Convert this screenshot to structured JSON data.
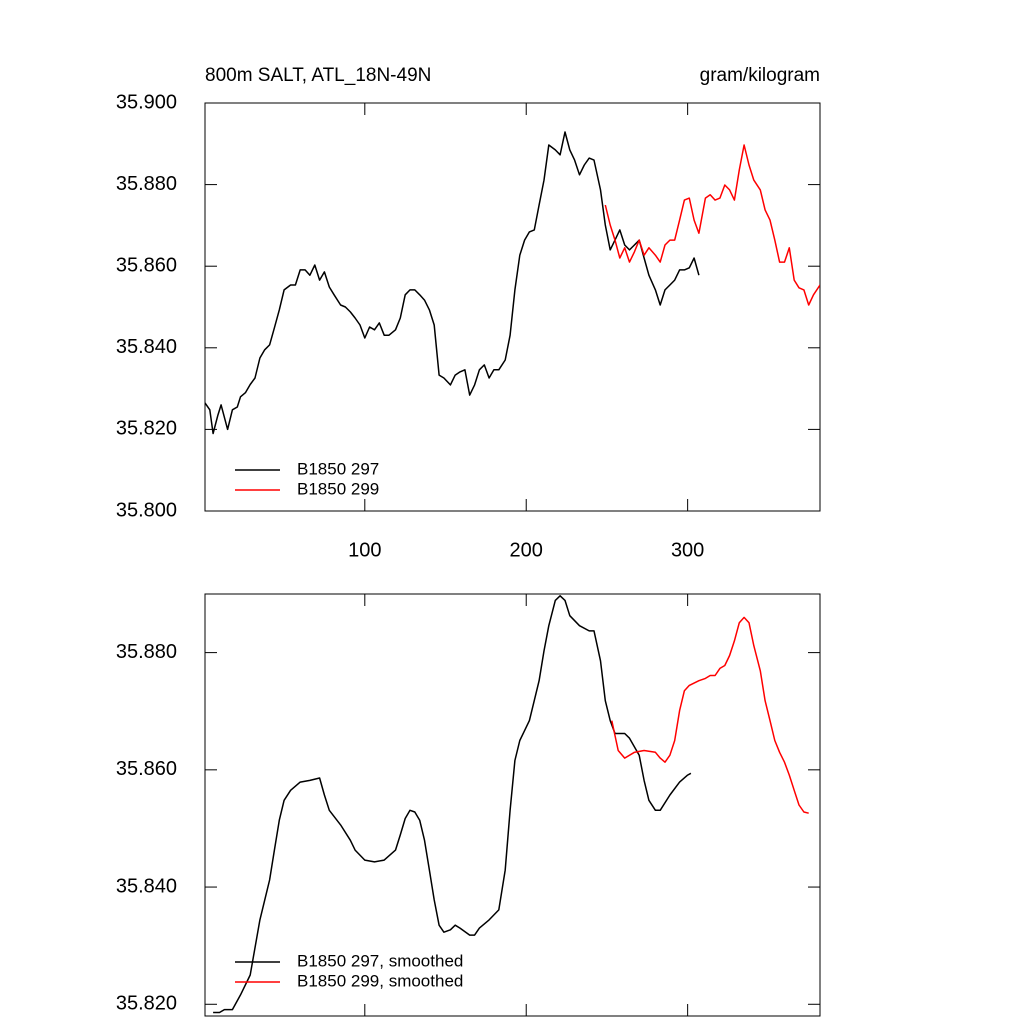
{
  "chart_data": [
    {
      "type": "line",
      "title": "800m SALT, ATL_18N-49N",
      "units": "gram/kilogram",
      "xlim": [
        1,
        382
      ],
      "xticks": [
        100,
        200,
        300
      ],
      "ylim": [
        35.8,
        35.9
      ],
      "yticks": [
        {
          "value": 35.8,
          "label": "35.800"
        },
        {
          "value": 35.82,
          "label": "35.820"
        },
        {
          "value": 35.84,
          "label": "35.840"
        },
        {
          "value": 35.86,
          "label": "35.860"
        },
        {
          "value": 35.88,
          "label": "35.880"
        },
        {
          "value": 35.9,
          "label": "35.900"
        }
      ],
      "series": [
        {
          "name": "B1850 297",
          "color": "#000000",
          "x": [
            1,
            4,
            6,
            9,
            11,
            15,
            18,
            21,
            23,
            26,
            29,
            32,
            35,
            38,
            41,
            44,
            47,
            50,
            54,
            57,
            60,
            63,
            66,
            69,
            72,
            75,
            78,
            81,
            85,
            88,
            91,
            94,
            97,
            100,
            103,
            106,
            109,
            112,
            115,
            119,
            122,
            125,
            128,
            131,
            134,
            137,
            140,
            143,
            146,
            149,
            153,
            156,
            159,
            162,
            165,
            168,
            171,
            174,
            177,
            180,
            183,
            187,
            190,
            193,
            196,
            199,
            202,
            205,
            208,
            211,
            214,
            218,
            221,
            224,
            227,
            230,
            233,
            236,
            239,
            242,
            246,
            249,
            252,
            255,
            258,
            261,
            264,
            267,
            270,
            273,
            276,
            280,
            283,
            286,
            289,
            292,
            295,
            298,
            301,
            304,
            307
          ],
          "values": [
            35.8265,
            35.8248,
            35.819,
            35.8235,
            35.826,
            35.82,
            35.8248,
            35.8255,
            35.828,
            35.829,
            35.831,
            35.8326,
            35.8375,
            35.8395,
            35.8407,
            35.8449,
            35.8493,
            35.8542,
            35.8554,
            35.8554,
            35.8591,
            35.8591,
            35.8578,
            35.8603,
            35.8566,
            35.8586,
            35.8549,
            35.853,
            35.8505,
            35.85,
            35.8488,
            35.8473,
            35.8456,
            35.8424,
            35.8451,
            35.8444,
            35.8461,
            35.8431,
            35.8431,
            35.8444,
            35.8473,
            35.853,
            35.8542,
            35.8542,
            35.853,
            35.8517,
            35.8493,
            35.8456,
            35.8333,
            35.8326,
            35.8309,
            35.8333,
            35.8341,
            35.8346,
            35.8284,
            35.8309,
            35.8346,
            35.8358,
            35.8326,
            35.8346,
            35.8346,
            35.837,
            35.8431,
            35.8542,
            35.8627,
            35.8664,
            35.8684,
            35.8689,
            35.875,
            35.8811,
            35.8897,
            35.8885,
            35.8873,
            35.8929,
            35.8885,
            35.886,
            35.8824,
            35.8848,
            35.8865,
            35.886,
            35.8787,
            35.8701,
            35.864,
            35.8664,
            35.8689,
            35.8652,
            35.864,
            35.8652,
            35.8664,
            35.862,
            35.8578,
            35.8542,
            35.8505,
            35.8542,
            35.8554,
            35.8566,
            35.8591,
            35.8591,
            35.8596,
            35.862,
            35.8578
          ]
        },
        {
          "name": "B1850 299",
          "color": "#ff0000",
          "x": [
            249,
            252,
            255,
            258,
            261,
            264,
            267,
            270,
            273,
            276,
            280,
            283,
            286,
            289,
            292,
            295,
            298,
            301,
            304,
            307,
            311,
            314,
            317,
            320,
            323,
            326,
            329,
            332,
            335,
            338,
            341,
            345,
            348,
            351,
            354,
            357,
            360,
            363,
            366,
            369,
            372,
            375,
            378,
            382
          ],
          "values": [
            35.875,
            35.8701,
            35.8664,
            35.862,
            35.8645,
            35.861,
            35.8635,
            35.8664,
            35.8627,
            35.8645,
            35.8627,
            35.861,
            35.8652,
            35.8664,
            35.8664,
            35.8713,
            35.8762,
            35.8767,
            35.8713,
            35.8681,
            35.8767,
            35.8775,
            35.8762,
            35.8767,
            35.8799,
            35.8787,
            35.8762,
            35.8836,
            35.8897,
            35.8848,
            35.8811,
            35.8787,
            35.8738,
            35.8713,
            35.8664,
            35.861,
            35.861,
            35.8645,
            35.8566,
            35.8547,
            35.8542,
            35.8505,
            35.853,
            35.8554
          ]
        }
      ]
    },
    {
      "type": "line",
      "xlim": [
        1,
        382
      ],
      "xticks": [
        100,
        200,
        300
      ],
      "ylim": [
        35.818,
        35.89
      ],
      "yticks": [
        {
          "value": 35.82,
          "label": "35.820"
        },
        {
          "value": 35.84,
          "label": "35.840"
        },
        {
          "value": 35.86,
          "label": "35.860"
        },
        {
          "value": 35.88,
          "label": "35.880"
        }
      ],
      "series": [
        {
          "name": "B1850 297, smoothed",
          "color": "#000000",
          "x": [
            6,
            10,
            13,
            18,
            23,
            29,
            35,
            41,
            44,
            47,
            50,
            54,
            60,
            66,
            72,
            75,
            78,
            85,
            91,
            94,
            100,
            106,
            112,
            119,
            122,
            125,
            128,
            131,
            134,
            137,
            140,
            143,
            146,
            149,
            153,
            156,
            159,
            165,
            168,
            171,
            177,
            183,
            187,
            190,
            193,
            196,
            199,
            202,
            208,
            211,
            214,
            218,
            221,
            224,
            227,
            233,
            239,
            242,
            246,
            249,
            252,
            255,
            261,
            264,
            270,
            273,
            276,
            280,
            283,
            289,
            295,
            300,
            302
          ],
          "values": [
            35.8186,
            35.8186,
            35.8191,
            35.8191,
            35.8216,
            35.825,
            35.8344,
            35.8412,
            35.8463,
            35.8514,
            35.8548,
            35.8565,
            35.8579,
            35.8582,
            35.8586,
            35.8557,
            35.8531,
            35.8506,
            35.848,
            35.8463,
            35.8446,
            35.8443,
            35.8446,
            35.8463,
            35.8489,
            35.8517,
            35.8531,
            35.8528,
            35.8514,
            35.848,
            35.8429,
            35.8378,
            35.8335,
            35.8323,
            35.8327,
            35.8335,
            35.833,
            35.8318,
            35.8318,
            35.833,
            35.8344,
            35.8361,
            35.8429,
            35.8531,
            35.8616,
            35.865,
            35.8667,
            35.8684,
            35.8752,
            35.8803,
            35.8846,
            35.8889,
            35.8897,
            35.8889,
            35.8863,
            35.8846,
            35.8837,
            35.8837,
            35.8786,
            35.8718,
            35.8684,
            35.8662,
            35.8662,
            35.8654,
            35.8625,
            35.8582,
            35.8548,
            35.8531,
            35.8531,
            35.8557,
            35.8579,
            35.8591,
            35.8594
          ]
        },
        {
          "name": "B1850 299, smoothed",
          "color": "#ff0000",
          "x": [
            253,
            257,
            261,
            267,
            273,
            280,
            283,
            286,
            289,
            292,
            295,
            298,
            301,
            307,
            311,
            314,
            317,
            320,
            323,
            326,
            329,
            332,
            335,
            338,
            341,
            345,
            348,
            351,
            354,
            357,
            360,
            363,
            366,
            369,
            372,
            375
          ],
          "values": [
            35.8684,
            35.8633,
            35.862,
            35.863,
            35.8633,
            35.863,
            35.862,
            35.8613,
            35.8625,
            35.865,
            35.8701,
            35.8735,
            35.8744,
            35.8752,
            35.8756,
            35.8761,
            35.8761,
            35.8773,
            35.8778,
            35.8795,
            35.882,
            35.8851,
            35.886,
            35.8851,
            35.8812,
            35.8769,
            35.8718,
            35.8684,
            35.865,
            35.863,
            35.8613,
            35.8591,
            35.8565,
            35.854,
            35.8528,
            35.8526
          ]
        }
      ]
    }
  ]
}
